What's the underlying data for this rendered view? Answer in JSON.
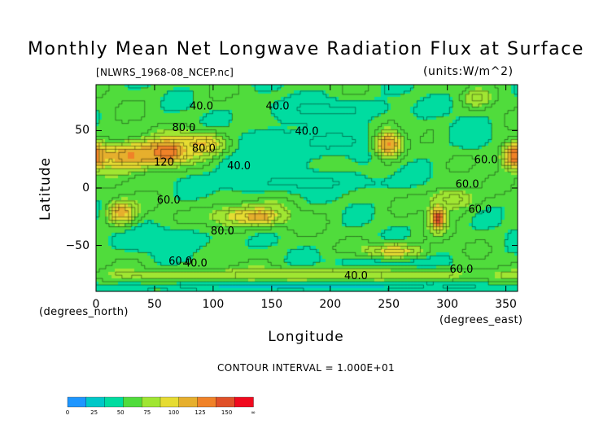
{
  "chart_data": {
    "type": "heatmap",
    "title": "Monthly Mean Net Longwave Radiation Flux at Surface",
    "subtitle": "[NLWRS_1968-08_NCEP.nc]",
    "units": "(units:W/m^2)",
    "xlabel": "Longitude",
    "ylabel": "Latitude",
    "x_unit_label": "(degrees_east)",
    "y_unit_label": "(degrees_north)",
    "xlim": [
      0,
      360
    ],
    "ylim": [
      -90,
      90
    ],
    "x_ticks": [
      "0",
      "50",
      "100",
      "150",
      "200",
      "250",
      "300",
      "350"
    ],
    "x_tick_values": [
      0,
      50,
      100,
      150,
      200,
      250,
      300,
      350
    ],
    "y_ticks": [
      "50",
      "0",
      "−50"
    ],
    "y_tick_values": [
      50,
      0,
      -50
    ],
    "contour_interval": "CONTOUR INTERVAL = 1.000E+01",
    "contour_labels": [
      {
        "text": "40.0",
        "lon": 90,
        "lat": 72
      },
      {
        "text": "40.0",
        "lon": 155,
        "lat": 72
      },
      {
        "text": "40.0",
        "lon": 180,
        "lat": 50
      },
      {
        "text": "80.0",
        "lon": 75,
        "lat": 53
      },
      {
        "text": "80.0",
        "lon": 92,
        "lat": 35
      },
      {
        "text": "40.0",
        "lon": 122,
        "lat": 20
      },
      {
        "text": "120",
        "lon": 58,
        "lat": 23
      },
      {
        "text": "60.0",
        "lon": 62,
        "lat": -10
      },
      {
        "text": "80.0",
        "lon": 108,
        "lat": -37
      },
      {
        "text": "60.0",
        "lon": 328,
        "lat": -18
      },
      {
        "text": "60.0",
        "lon": 317,
        "lat": 4
      },
      {
        "text": "60.0",
        "lon": 333,
        "lat": 25
      },
      {
        "text": "60.0",
        "lon": 72,
        "lat": -63
      },
      {
        "text": "40.0",
        "lon": 85,
        "lat": -65
      },
      {
        "text": "40.0",
        "lon": 222,
        "lat": -76
      },
      {
        "text": "60.0",
        "lon": 312,
        "lat": -70
      }
    ],
    "colorbar": {
      "levels": [
        0,
        25,
        50,
        75,
        100,
        125,
        150
      ],
      "tick_labels": [
        "0",
        "25",
        "50",
        "75",
        "100",
        "125",
        "150",
        "∞"
      ],
      "colors": [
        "#1e96ff",
        "#00c8c8",
        "#00dca0",
        "#50dc3c",
        "#a0e632",
        "#e6dc32",
        "#e6af2d",
        "#f08228",
        "#e05028",
        "#f00a1e"
      ]
    },
    "field_features": [
      {
        "name": "background",
        "value": 55
      },
      {
        "name": "arctic-cyan",
        "lon": 200,
        "lat": 68,
        "rx": 70,
        "ry": 12,
        "value": 38
      },
      {
        "name": "n-pacific-cyan",
        "lon": 200,
        "lat": 40,
        "rx": 70,
        "ry": 18,
        "value": 38
      },
      {
        "name": "eq-pacific-cyan",
        "lon": 175,
        "lat": 5,
        "rx": 95,
        "ry": 12,
        "value": 38
      },
      {
        "name": "siberia-cyan",
        "lon": 120,
        "lat": 22,
        "rx": 22,
        "ry": 22,
        "value": 42
      },
      {
        "name": "n-atlantic-cyan",
        "lon": 320,
        "lat": 45,
        "rx": 20,
        "ry": 15,
        "value": 42
      },
      {
        "name": "s-indian-cyan",
        "lon": 60,
        "lat": -45,
        "rx": 60,
        "ry": 15,
        "value": 42
      },
      {
        "name": "s-pacific-cyan",
        "lon": 250,
        "lat": -65,
        "rx": 60,
        "ry": 10,
        "value": 40
      },
      {
        "name": "sahara",
        "lon": 30,
        "lat": 28,
        "rx": 35,
        "ry": 14,
        "value": 120
      },
      {
        "name": "arabia",
        "lon": 62,
        "lat": 32,
        "rx": 20,
        "ry": 12,
        "value": 140
      },
      {
        "name": "himalaya",
        "lon": 90,
        "lat": 38,
        "rx": 25,
        "ry": 12,
        "value": 105
      },
      {
        "name": "n-america-west",
        "lon": 250,
        "lat": 38,
        "rx": 14,
        "ry": 14,
        "value": 120
      },
      {
        "name": "greenland",
        "lon": 325,
        "lat": 78,
        "rx": 12,
        "ry": 8,
        "value": 85
      },
      {
        "name": "w-sahara",
        "lon": 358,
        "lat": 28,
        "rx": 12,
        "ry": 12,
        "value": 135
      },
      {
        "name": "s-africa",
        "lon": 22,
        "lat": -22,
        "rx": 14,
        "ry": 12,
        "value": 110
      },
      {
        "name": "australia",
        "lon": 130,
        "lat": -25,
        "rx": 40,
        "ry": 12,
        "value": 95
      },
      {
        "name": "australia-core",
        "lon": 140,
        "lat": -25,
        "rx": 12,
        "ry": 6,
        "value": 115
      },
      {
        "name": "andes",
        "lon": 292,
        "lat": -25,
        "rx": 8,
        "ry": 14,
        "value": 120
      },
      {
        "name": "andes-core",
        "lon": 292,
        "lat": -27,
        "rx": 4,
        "ry": 6,
        "value": 155
      },
      {
        "name": "s-america",
        "lon": 305,
        "lat": -10,
        "rx": 22,
        "ry": 12,
        "value": 85
      },
      {
        "name": "s-pacific-yellow",
        "lon": 255,
        "lat": -55,
        "rx": 30,
        "ry": 8,
        "value": 95
      },
      {
        "name": "antarctic-belt",
        "lon": 180,
        "lat": -76,
        "rx": 200,
        "ry": 7,
        "value": 85
      },
      {
        "name": "antarctic-cold",
        "lon": 180,
        "lat": -86,
        "rx": 200,
        "ry": 5,
        "value": 30
      }
    ]
  }
}
